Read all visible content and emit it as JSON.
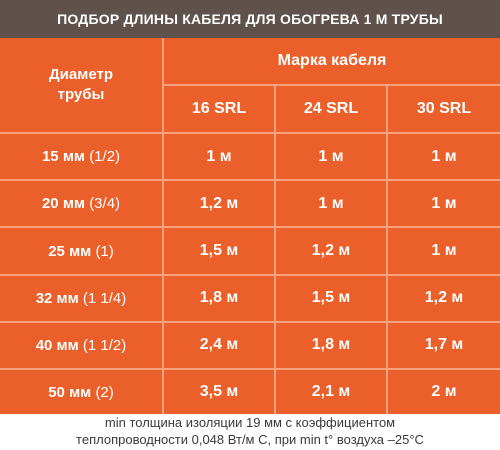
{
  "title": "ПОДБОР ДЛИНЫ КАБЕЛЯ ДЛЯ ОБОГРЕВА 1 М ТРУБЫ",
  "table": {
    "diameter_header": "Диаметр трубы",
    "brand_header": "Марка кабеля",
    "columns": [
      "16 SRL",
      "24 SRL",
      "30 SRL"
    ],
    "rows": [
      {
        "diameter": "15 мм",
        "inch": "(1/2)",
        "values": [
          "1 м",
          "1 м",
          "1 м"
        ]
      },
      {
        "diameter": "20 мм",
        "inch": "(3/4)",
        "values": [
          "1,2 м",
          "1 м",
          "1 м"
        ]
      },
      {
        "diameter": "25 мм",
        "inch": "(1)",
        "values": [
          "1,5 м",
          "1,2 м",
          "1 м"
        ]
      },
      {
        "diameter": "32 мм",
        "inch": "(1 1/4)",
        "values": [
          "1,8 м",
          "1,5 м",
          "1,2 м"
        ]
      },
      {
        "diameter": "40 мм",
        "inch": "(1 1/2)",
        "values": [
          "2,4 м",
          "1,8 м",
          "1,7 м"
        ]
      },
      {
        "diameter": "50 мм",
        "inch": "(2)",
        "values": [
          "3,5 м",
          "2,1 м",
          "2 м"
        ]
      }
    ]
  },
  "footnote": {
    "line1": "min толщина изоляции 19 мм с коэффициентом",
    "line2": "теплопроводности 0,048 Вт/м С, при min t° воздуха –25°С"
  },
  "colors": {
    "title_bg": "#5f524d",
    "table_bg": "#eb5f2a",
    "grid": "#f6a27f",
    "text": "#ffffff"
  }
}
